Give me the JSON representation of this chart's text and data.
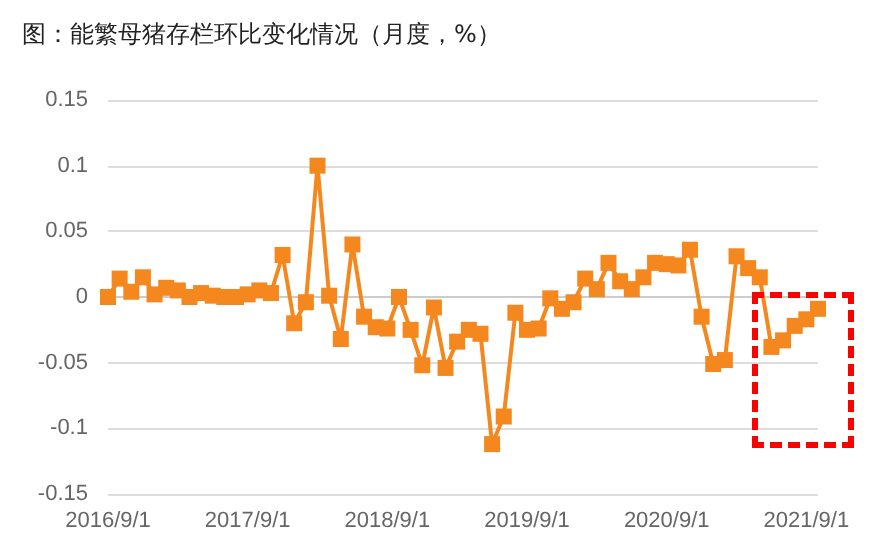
{
  "chart_data": {
    "type": "line",
    "title": "图：能繁母猪存栏环比变化情况（月度，%）",
    "categories": [
      "2016/9/1",
      null,
      null,
      null,
      null,
      null,
      null,
      null,
      null,
      null,
      null,
      null,
      "2017/9/1",
      null,
      null,
      null,
      null,
      null,
      null,
      null,
      null,
      null,
      null,
      null,
      "2018/9/1",
      null,
      null,
      null,
      null,
      null,
      null,
      null,
      null,
      null,
      null,
      null,
      "2019/9/1",
      null,
      null,
      null,
      null,
      null,
      null,
      null,
      null,
      null,
      null,
      null,
      "2020/9/1",
      null,
      null,
      null,
      null,
      null,
      null,
      null,
      null,
      null,
      null,
      null,
      "2021/9/1",
      null
    ],
    "series": [
      {
        "color": "#f5871f",
        "values": [
          0,
          0.014,
          0.004,
          0.015,
          0.002,
          0.007,
          0.005,
          0,
          0.003,
          0.001,
          0,
          0,
          0.002,
          0.005,
          0.003,
          0.032,
          -0.02,
          -0.004,
          0.1,
          0.001,
          -0.032,
          0.04,
          -0.015,
          -0.023,
          -0.024,
          0,
          -0.025,
          -0.052,
          -0.008,
          -0.054,
          -0.034,
          -0.025,
          -0.028,
          -0.112,
          -0.091,
          -0.012,
          -0.025,
          -0.024,
          -0.001,
          -0.009,
          -0.004,
          0.014,
          0.006,
          0.026,
          0.012,
          0.006,
          0.015,
          0.026,
          0.025,
          0.024,
          0.036,
          -0.015,
          -0.051,
          -0.048,
          0.031,
          0.022,
          0.015,
          -0.038,
          -0.033,
          -0.022,
          -0.017,
          -0.009
        ]
      }
    ],
    "ylim": [
      -0.15,
      0.15
    ],
    "yticks": [
      -0.15,
      -0.1,
      -0.05,
      0,
      0.05,
      0.1,
      0.15
    ],
    "grid": "y",
    "marker": "square",
    "line_style": "solid"
  }
}
